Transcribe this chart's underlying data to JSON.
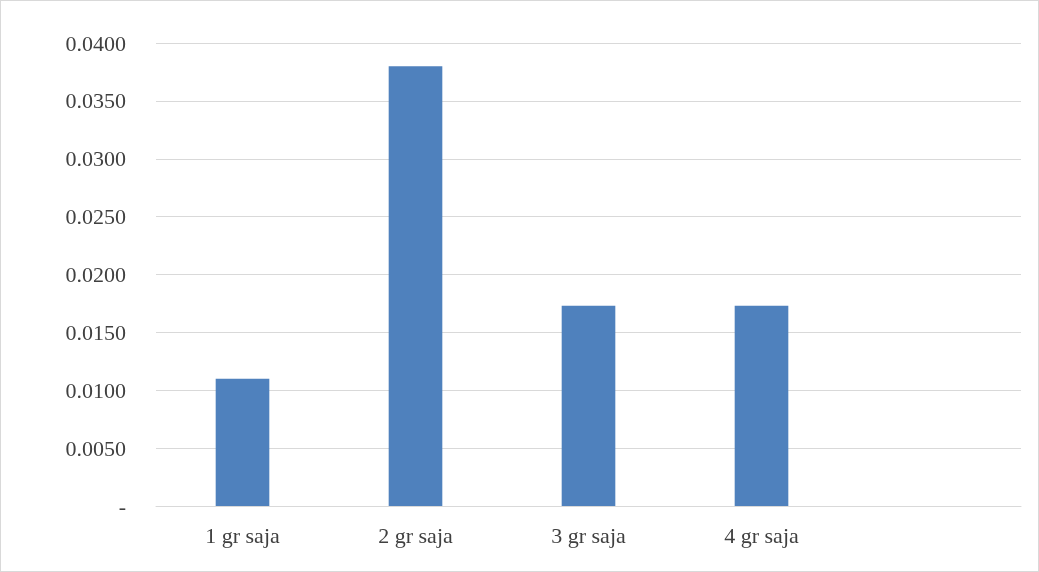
{
  "chart_data": {
    "type": "bar",
    "categories": [
      "1 gr saja",
      "2 gr saja",
      "3 gr saja",
      "4 gr saja",
      null
    ],
    "series": [
      {
        "color": "#4f81bd",
        "values": [
          0.011,
          0.038,
          0.0173,
          0.0173,
          null
        ]
      }
    ],
    "ylim": [
      0,
      0.04
    ],
    "yticks": [
      {
        "value": 0,
        "label": "-"
      },
      {
        "value": 0.005,
        "label": "0.0050"
      },
      {
        "value": 0.01,
        "label": "0.0100"
      },
      {
        "value": 0.015,
        "label": "0.0150"
      },
      {
        "value": 0.02,
        "label": "0.0200"
      },
      {
        "value": 0.025,
        "label": "0.0250"
      },
      {
        "value": 0.03,
        "label": "0.0300"
      },
      {
        "value": 0.035,
        "label": "0.0350"
      },
      {
        "value": 0.04,
        "label": "0.0400"
      }
    ],
    "grid": "y"
  }
}
